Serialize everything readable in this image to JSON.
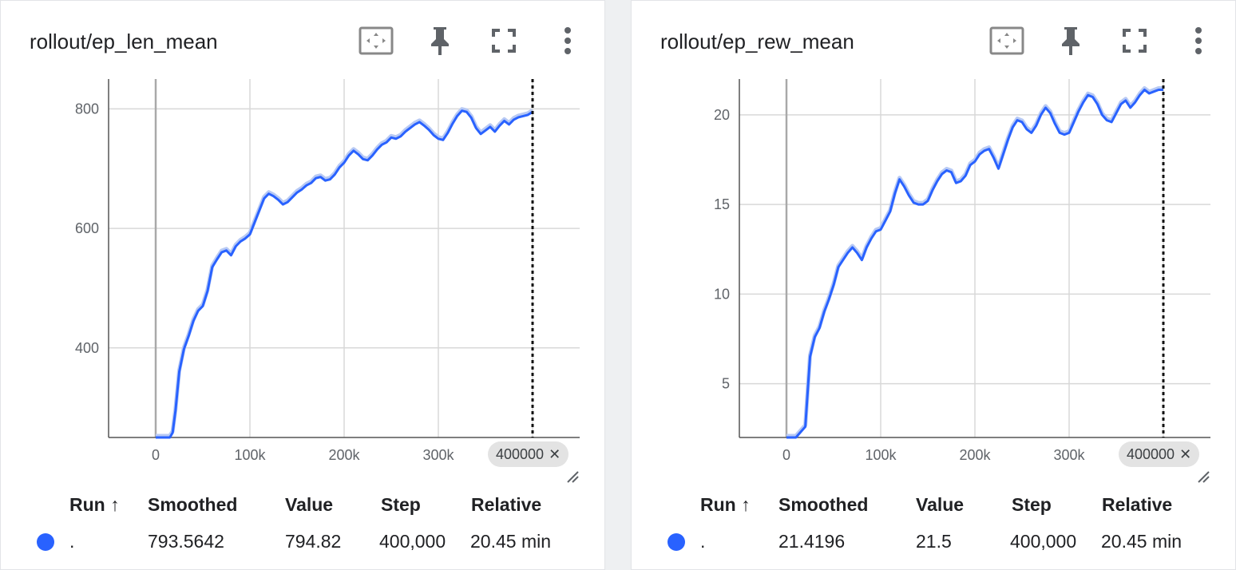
{
  "charts": [
    {
      "title": "rollout/ep_len_mean",
      "step_chip": "400000",
      "table": {
        "headers": {
          "run": "Run ↑",
          "smoothed": "Smoothed",
          "value": "Value",
          "step": "Step",
          "relative": "Relative"
        },
        "row": {
          "run": ".",
          "smoothed": "793.5642",
          "value": "794.82",
          "step": "400,000",
          "relative": "20.45 min"
        }
      }
    },
    {
      "title": "rollout/ep_rew_mean",
      "step_chip": "400000",
      "table": {
        "headers": {
          "run": "Run ↑",
          "smoothed": "Smoothed",
          "value": "Value",
          "step": "Step",
          "relative": "Relative"
        },
        "row": {
          "run": ".",
          "smoothed": "21.4196",
          "value": "21.5",
          "step": "400,000",
          "relative": "20.45 min"
        }
      }
    }
  ],
  "icons": [
    "fit-domain-icon",
    "pin-icon",
    "fullscreen-icon",
    "more-vert-icon"
  ],
  "colors": {
    "line": "#2962ff",
    "raw_line": "#b7c9f4",
    "grid": "#d8d8d8",
    "dot": "#2962ff"
  },
  "chart_data": [
    {
      "type": "line",
      "title": "rollout/ep_len_mean",
      "xlabel": "",
      "ylabel": "",
      "x_ticks": [
        "0",
        "100k",
        "200k",
        "300k"
      ],
      "y_ticks": [
        "400",
        "600",
        "800"
      ],
      "xlim": [
        -50000,
        450000
      ],
      "ylim": [
        250,
        850
      ],
      "grid": true,
      "cursor_step": 400000,
      "series": [
        {
          "x": [
            0,
            15000,
            18000,
            21000,
            25000,
            30000,
            35000,
            40000,
            45000,
            50000,
            55000,
            60000,
            65000,
            70000,
            75000,
            80000,
            85000,
            90000,
            95000,
            100000,
            105000,
            110000,
            115000,
            120000,
            125000,
            130000,
            135000,
            140000,
            145000,
            150000,
            155000,
            160000,
            165000,
            170000,
            175000,
            180000,
            185000,
            190000,
            195000,
            200000,
            205000,
            210000,
            215000,
            220000,
            225000,
            230000,
            235000,
            240000,
            245000,
            250000,
            255000,
            260000,
            265000,
            270000,
            275000,
            280000,
            285000,
            290000,
            295000,
            300000,
            305000,
            310000,
            315000,
            320000,
            325000,
            330000,
            335000,
            340000,
            345000,
            350000,
            355000,
            360000,
            365000,
            370000,
            375000,
            380000,
            385000,
            390000,
            395000,
            400000
          ],
          "y": [
            250,
            250,
            258,
            295,
            360,
            398,
            420,
            445,
            462,
            470,
            495,
            535,
            548,
            560,
            563,
            555,
            570,
            578,
            583,
            590,
            610,
            630,
            650,
            658,
            654,
            648,
            640,
            644,
            652,
            660,
            665,
            672,
            676,
            684,
            686,
            680,
            682,
            690,
            702,
            710,
            722,
            730,
            724,
            716,
            714,
            722,
            732,
            740,
            744,
            752,
            750,
            754,
            762,
            768,
            774,
            778,
            772,
            765,
            756,
            750,
            748,
            760,
            775,
            788,
            797,
            795,
            785,
            768,
            758,
            764,
            770,
            762,
            772,
            780,
            774,
            782,
            786,
            788,
            790,
            795
          ]
        }
      ]
    },
    {
      "type": "line",
      "title": "rollout/ep_rew_mean",
      "xlabel": "",
      "ylabel": "",
      "x_ticks": [
        "0",
        "100k",
        "200k",
        "300k"
      ],
      "y_ticks": [
        "5",
        "10",
        "15",
        "20"
      ],
      "xlim": [
        -50000,
        450000
      ],
      "ylim": [
        2,
        22
      ],
      "grid": true,
      "cursor_step": 400000,
      "series": [
        {
          "x": [
            0,
            10000,
            15000,
            20000,
            25000,
            30000,
            35000,
            40000,
            45000,
            50000,
            55000,
            60000,
            65000,
            70000,
            75000,
            80000,
            85000,
            90000,
            95000,
            100000,
            105000,
            110000,
            115000,
            120000,
            125000,
            130000,
            135000,
            140000,
            145000,
            150000,
            155000,
            160000,
            165000,
            170000,
            175000,
            180000,
            185000,
            190000,
            195000,
            200000,
            205000,
            210000,
            215000,
            220000,
            225000,
            230000,
            235000,
            240000,
            245000,
            250000,
            255000,
            260000,
            265000,
            270000,
            275000,
            280000,
            285000,
            290000,
            295000,
            300000,
            305000,
            310000,
            315000,
            320000,
            325000,
            330000,
            335000,
            340000,
            345000,
            350000,
            355000,
            360000,
            365000,
            370000,
            375000,
            380000,
            385000,
            390000,
            395000,
            400000
          ],
          "y": [
            2,
            2,
            2.3,
            2.6,
            6.5,
            7.6,
            8.1,
            9.0,
            9.7,
            10.5,
            11.5,
            11.9,
            12.3,
            12.6,
            12.3,
            11.9,
            12.6,
            13.1,
            13.5,
            13.6,
            14.1,
            14.6,
            15.6,
            16.4,
            16.0,
            15.5,
            15.1,
            15.0,
            15.0,
            15.2,
            15.8,
            16.3,
            16.7,
            16.9,
            16.8,
            16.2,
            16.3,
            16.6,
            17.2,
            17.4,
            17.8,
            18.0,
            18.1,
            17.6,
            17.0,
            17.8,
            18.6,
            19.3,
            19.7,
            19.6,
            19.2,
            19.0,
            19.4,
            20.0,
            20.4,
            20.1,
            19.5,
            19.0,
            18.9,
            19.0,
            19.6,
            20.2,
            20.7,
            21.1,
            21.0,
            20.6,
            20.0,
            19.7,
            19.6,
            20.1,
            20.6,
            20.8,
            20.4,
            20.7,
            21.1,
            21.4,
            21.2,
            21.3,
            21.4,
            21.4
          ]
        }
      ]
    }
  ]
}
